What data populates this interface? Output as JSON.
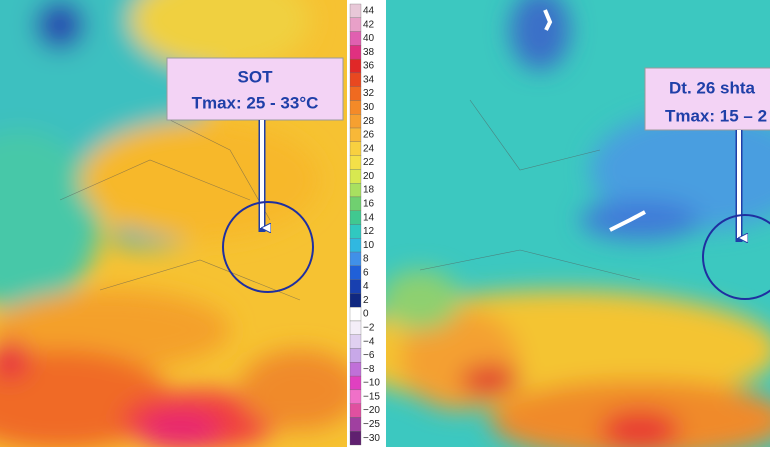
{
  "left_panel": {
    "annotation": {
      "line1": "SOT",
      "line2": "Tmax: 25 - 33°C"
    }
  },
  "right_panel": {
    "annotation": {
      "line1": "Dt. 26 shta",
      "line2": "Tmax: 15 – 2"
    }
  },
  "colorbar": {
    "labels": [
      "44",
      "42",
      "40",
      "38",
      "36",
      "34",
      "32",
      "30",
      "28",
      "26",
      "24",
      "22",
      "20",
      "18",
      "16",
      "14",
      "12",
      "10",
      "8",
      "6",
      "4",
      "2",
      "0",
      "−2",
      "−4",
      "−6",
      "−8",
      "−10",
      "−15",
      "−20",
      "−25",
      "−30"
    ]
  }
}
